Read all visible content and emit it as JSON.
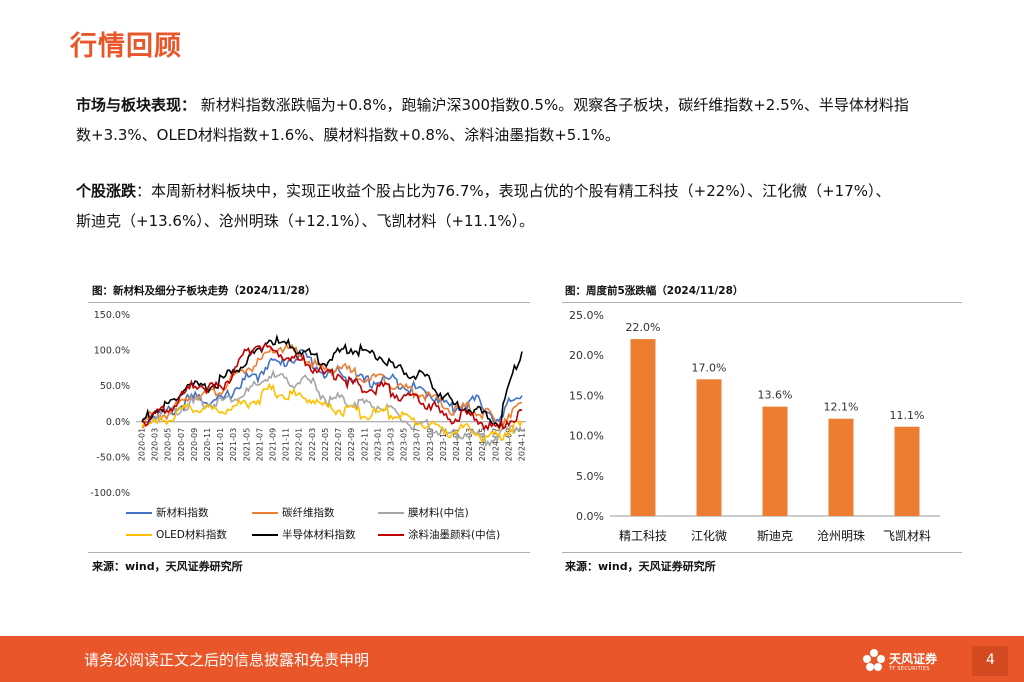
{
  "page_title": "行情回顾",
  "para1": {
    "label": "市场与板块表现：",
    "line1": "新材料指数涨跌幅为+0.8%，跑输沪深300指数0.5%。观察各子板块，碳纤维指数+2.5%、半导体材料指",
    "line2": "数+3.3%、OLED材料指数+1.6%、膜材料指数+0.8%、涂料油墨指数+5.1%。"
  },
  "para2": {
    "label": "个股涨跌",
    "line1": "：本周新材料板块中，实现正收益个股占比为76.7%，表现占优的个股有精工科技（+22%）、江化微（+17%）、",
    "line2": "斯迪克（+13.6%）、沧州明珠（+12.1%）、飞凯材料（+11.1%）。"
  },
  "caption1": "图：新材料及细分子板块走势（2024/11/28）",
  "caption2": "图：周度前5涨跌幅（2024/11/28）",
  "source1": "来源：wind，天风证券研究所",
  "source2": "来源：wind，天风证券研究所",
  "footer": {
    "disclaimer": "请务必阅读正文之后的信息披露和免责申明",
    "logo_name": "天风证券",
    "logo_sub": "TF SECURITIES",
    "page_number": "4"
  },
  "colors": {
    "accent": "#E8562A",
    "bar": "#ED7D31",
    "xincailiao": "#4472C4",
    "tanxianwei": "#ED7D31",
    "mocailiao": "#A5A5A5",
    "oled": "#FFC000",
    "bandaoti": "#000000",
    "tuliao": "#C00000"
  },
  "chart_data": [
    {
      "type": "line",
      "ylim": [
        -100,
        150
      ],
      "yticks": [
        "150.0%",
        "100.0%",
        "50.0%",
        "0.0%",
        "-50.0%",
        "-100.0%"
      ],
      "ytick_values": [
        150,
        100,
        50,
        0,
        -50,
        -100
      ],
      "xticks": [
        "2020-01",
        "2020-03",
        "2020-05",
        "2020-07",
        "2020-09",
        "2020-11",
        "2021-01",
        "2021-03",
        "2021-05",
        "2021-07",
        "2021-09",
        "2021-11",
        "2022-01",
        "2022-03",
        "2022-05",
        "2022-07",
        "2022-09",
        "2022-11",
        "2023-01",
        "2023-03",
        "2023-05",
        "2023-07",
        "2023-09",
        "2023-11",
        "2024-01",
        "2024-03",
        "2024-05",
        "2024-07",
        "2024-09",
        "2024-11"
      ],
      "legend": "bottom",
      "series": [
        {
          "name": "新材料指数",
          "color": "#4472C4",
          "values": [
            0,
            10,
            12,
            18,
            30,
            35,
            28,
            30,
            45,
            60,
            62,
            85,
            80,
            90,
            95,
            80,
            65,
            70,
            62,
            58,
            55,
            60,
            58,
            50,
            45,
            40,
            30,
            18,
            25,
            30,
            20,
            -5,
            30,
            40
          ]
        },
        {
          "name": "碳纤维指数",
          "color": "#ED7D31",
          "values": [
            0,
            8,
            10,
            20,
            35,
            40,
            38,
            48,
            60,
            75,
            80,
            95,
            105,
            100,
            90,
            80,
            72,
            78,
            70,
            65,
            60,
            62,
            52,
            45,
            42,
            35,
            25,
            15,
            20,
            15,
            10,
            -5,
            15,
            20
          ]
        },
        {
          "name": "膜材料(中信)",
          "color": "#A5A5A5",
          "values": [
            0,
            8,
            12,
            18,
            25,
            28,
            26,
            30,
            35,
            40,
            50,
            65,
            60,
            55,
            58,
            52,
            30,
            32,
            28,
            26,
            24,
            20,
            10,
            0,
            -10,
            -5,
            -15,
            -20,
            -15,
            -20,
            -25,
            -20,
            -10,
            -5
          ]
        },
        {
          "name": "OLED材料指数",
          "color": "#FFC000",
          "values": [
            0,
            -5,
            5,
            10,
            18,
            20,
            15,
            18,
            20,
            28,
            30,
            45,
            40,
            38,
            35,
            30,
            20,
            18,
            15,
            12,
            10,
            15,
            10,
            5,
            0,
            -5,
            -10,
            -15,
            -10,
            -15,
            -25,
            -20,
            -10,
            -5
          ]
        },
        {
          "name": "半导体材料指数",
          "color": "#000000",
          "values": [
            0,
            15,
            20,
            30,
            55,
            45,
            50,
            60,
            70,
            85,
            100,
            115,
            110,
            105,
            100,
            90,
            85,
            95,
            105,
            100,
            95,
            90,
            75,
            70,
            65,
            55,
            40,
            25,
            20,
            15,
            10,
            -5,
            60,
            100
          ]
        },
        {
          "name": "涂料油墨颜料(中信)",
          "color": "#C00000",
          "values": [
            0,
            10,
            15,
            25,
            45,
            55,
            45,
            50,
            70,
            95,
            110,
            100,
            95,
            90,
            85,
            75,
            65,
            68,
            55,
            50,
            45,
            50,
            40,
            35,
            30,
            25,
            10,
            5,
            10,
            5,
            -5,
            -10,
            5,
            15
          ]
        }
      ]
    },
    {
      "type": "bar",
      "categories": [
        "精工科技",
        "江化微",
        "斯迪克",
        "沧州明珠",
        "飞凯材料"
      ],
      "values": [
        22.0,
        17.0,
        13.6,
        12.1,
        11.1
      ],
      "data_labels": [
        "22.0%",
        "17.0%",
        "13.6%",
        "12.1%",
        "11.1%"
      ],
      "ylim": [
        0,
        25
      ],
      "yticks": [
        "25.0%",
        "20.0%",
        "15.0%",
        "10.0%",
        "5.0%",
        "0.0%"
      ],
      "ytick_values": [
        25,
        20,
        15,
        10,
        5,
        0
      ]
    }
  ]
}
